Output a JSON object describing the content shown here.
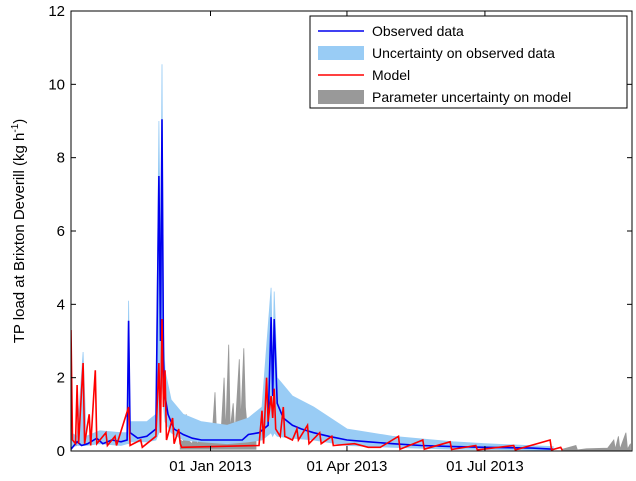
{
  "chart_data": {
    "type": "line",
    "title": "",
    "ylabel": {
      "prefix": "TP load at Brixton Deverill (kg h",
      "sup": "-1",
      "suffix": ")"
    },
    "xlabel": "",
    "ylim": [
      0,
      12
    ],
    "yticks": [
      0,
      2,
      4,
      6,
      8,
      10,
      12
    ],
    "xlim": [
      "2012-10-01",
      "2013-10-06"
    ],
    "xticks": [
      {
        "date": "2013-01-01",
        "label": "01 Jan 2013"
      },
      {
        "date": "2013-04-01",
        "label": "01 Apr 2013"
      },
      {
        "date": "2013-07-01",
        "label": "01 Jul 2013"
      }
    ],
    "grid": false,
    "legend_position": "top-right",
    "colors": {
      "observed": "#0000ee",
      "observed_band": "#99ccf5",
      "model": "#ff0000",
      "model_band": "#999999"
    },
    "legend": [
      {
        "label": "Observed data",
        "kind": "line",
        "color": "#0000ee"
      },
      {
        "label": "Uncertainty on observed data",
        "kind": "patch",
        "color": "#99ccf5"
      },
      {
        "label": "Model",
        "kind": "line",
        "color": "#ff0000"
      },
      {
        "label": "Parameter uncertainty on model",
        "kind": "patch",
        "color": "#999999"
      }
    ],
    "series": [
      {
        "name": "Observed data",
        "points": [
          [
            "2012-10-01",
            0.05
          ],
          [
            "2012-10-05",
            0.25
          ],
          [
            "2012-10-08",
            0.15
          ],
          [
            "2012-10-12",
            0.2
          ],
          [
            "2012-10-18",
            0.35
          ],
          [
            "2012-10-22",
            0.2
          ],
          [
            "2012-10-28",
            0.3
          ],
          [
            "2012-11-03",
            0.25
          ],
          [
            "2012-11-07",
            0.3
          ],
          [
            "2012-11-08",
            3.55
          ],
          [
            "2012-11-09",
            0.5
          ],
          [
            "2012-11-14",
            0.35
          ],
          [
            "2012-11-20",
            0.4
          ],
          [
            "2012-11-26",
            0.6
          ],
          [
            "2012-11-28",
            7.5
          ],
          [
            "2012-11-29",
            3.0
          ],
          [
            "2012-11-30",
            9.05
          ],
          [
            "2012-12-01",
            2.5
          ],
          [
            "2012-12-02",
            1.5
          ],
          [
            "2012-12-04",
            1.0
          ],
          [
            "2012-12-08",
            0.6
          ],
          [
            "2012-12-14",
            0.45
          ],
          [
            "2012-12-20",
            0.35
          ],
          [
            "2012-12-26",
            0.3
          ],
          [
            "2013-01-02",
            0.3
          ],
          [
            "2013-01-12",
            0.3
          ],
          [
            "2013-01-22",
            0.3
          ],
          [
            "2013-01-26",
            0.45
          ],
          [
            "2013-02-02",
            0.5
          ],
          [
            "2013-02-08",
            0.7
          ],
          [
            "2013-02-10",
            3.65
          ],
          [
            "2013-02-11",
            1.5
          ],
          [
            "2013-02-12",
            3.6
          ],
          [
            "2013-02-14",
            1.3
          ],
          [
            "2013-02-18",
            0.9
          ],
          [
            "2013-02-24",
            0.7
          ],
          [
            "2013-03-02",
            0.6
          ],
          [
            "2013-03-10",
            0.5
          ],
          [
            "2013-03-20",
            0.4
          ],
          [
            "2013-04-01",
            0.3
          ],
          [
            "2013-04-15",
            0.25
          ],
          [
            "2013-05-01",
            0.2
          ],
          [
            "2013-05-20",
            0.15
          ],
          [
            "2013-06-10",
            0.12
          ],
          [
            "2013-07-01",
            0.1
          ],
          [
            "2013-08-01",
            0.08
          ],
          [
            "2013-08-15",
            0.05
          ]
        ]
      },
      {
        "name": "Uncertainty on observed data",
        "points": [
          [
            "2012-10-01",
            0.1,
            0.5
          ],
          [
            "2012-10-05",
            0.15,
            0.4
          ],
          [
            "2012-10-09",
            0.15,
            2.7
          ],
          [
            "2012-10-11",
            0.15,
            0.4
          ],
          [
            "2012-10-20",
            0.2,
            0.55
          ],
          [
            "2012-11-03",
            0.15,
            0.5
          ],
          [
            "2012-11-07",
            0.2,
            0.5
          ],
          [
            "2012-11-08",
            0.2,
            4.1
          ],
          [
            "2012-11-09",
            0.25,
            0.8
          ],
          [
            "2012-11-20",
            0.25,
            0.8
          ],
          [
            "2012-11-26",
            0.3,
            1.0
          ],
          [
            "2012-11-28",
            0.5,
            9.0
          ],
          [
            "2012-11-29",
            1.0,
            5.0
          ],
          [
            "2012-11-30",
            2.0,
            10.55
          ],
          [
            "2012-12-01",
            1.2,
            3.3
          ],
          [
            "2012-12-02",
            0.8,
            2.2
          ],
          [
            "2012-12-06",
            0.5,
            1.4
          ],
          [
            "2012-12-14",
            0.3,
            1.0
          ],
          [
            "2012-12-26",
            0.25,
            0.8
          ],
          [
            "2013-01-12",
            0.2,
            0.7
          ],
          [
            "2013-01-26",
            0.25,
            0.9
          ],
          [
            "2013-02-04",
            0.3,
            1.2
          ],
          [
            "2013-02-10",
            0.5,
            4.45
          ],
          [
            "2013-02-11",
            0.4,
            2.2
          ],
          [
            "2013-02-12",
            0.5,
            4.35
          ],
          [
            "2013-02-14",
            0.4,
            2.0
          ],
          [
            "2013-02-24",
            0.35,
            1.5
          ],
          [
            "2013-03-10",
            0.3,
            1.2
          ],
          [
            "2013-04-01",
            0.15,
            0.6
          ],
          [
            "2013-05-01",
            0.1,
            0.4
          ],
          [
            "2013-06-10",
            0.05,
            0.25
          ],
          [
            "2013-07-01",
            0.04,
            0.2
          ],
          [
            "2013-08-15",
            0.02,
            0.12
          ]
        ]
      },
      {
        "name": "Model",
        "points": [
          [
            "2012-10-01",
            3.3
          ],
          [
            "2012-10-02",
            0.3
          ],
          [
            "2012-10-04",
            0.2
          ],
          [
            "2012-10-05",
            1.8
          ],
          [
            "2012-10-06",
            0.2
          ],
          [
            "2012-10-09",
            2.4
          ],
          [
            "2012-10-10",
            0.2
          ],
          [
            "2012-10-13",
            1.0
          ],
          [
            "2012-10-14",
            0.15
          ],
          [
            "2012-10-16",
            1.5
          ],
          [
            "2012-10-17",
            2.2
          ],
          [
            "2012-10-18",
            0.2
          ],
          [
            "2012-10-24",
            0.5
          ],
          [
            "2012-10-25",
            0.15
          ],
          [
            "2012-10-30",
            0.4
          ],
          [
            "2012-10-31",
            0.15
          ],
          [
            "2012-11-08",
            1.2
          ],
          [
            "2012-11-09",
            0.15
          ],
          [
            "2012-11-16",
            0.3
          ],
          [
            "2012-11-17",
            0.1
          ],
          [
            "2012-11-26",
            0.4
          ],
          [
            "2012-11-28",
            2.4
          ],
          [
            "2012-11-29",
            0.5
          ],
          [
            "2012-11-30",
            3.6
          ],
          [
            "2012-12-01",
            1.2
          ],
          [
            "2012-12-02",
            2.2
          ],
          [
            "2012-12-03",
            0.3
          ],
          [
            "2012-12-07",
            0.9
          ],
          [
            "2012-12-08",
            0.2
          ],
          [
            "2012-12-11",
            0.6
          ],
          [
            "2012-12-12",
            0.2
          ],
          [
            "2012-12-13",
            0.1
          ],
          [
            "2013-02-02",
            0.15
          ],
          [
            "2013-02-04",
            1.1
          ],
          [
            "2013-02-05",
            0.2
          ],
          [
            "2013-02-07",
            2.0
          ],
          [
            "2013-02-08",
            0.8
          ],
          [
            "2013-02-10",
            1.5
          ],
          [
            "2013-02-11",
            0.9
          ],
          [
            "2013-02-12",
            1.7
          ],
          [
            "2013-02-13",
            0.6
          ],
          [
            "2013-02-16",
            0.4
          ],
          [
            "2013-02-18",
            1.2
          ],
          [
            "2013-02-19",
            0.4
          ],
          [
            "2013-02-24",
            0.3
          ],
          [
            "2013-02-27",
            0.6
          ],
          [
            "2013-02-28",
            0.3
          ],
          [
            "2013-03-06",
            0.7
          ],
          [
            "2013-03-07",
            0.2
          ],
          [
            "2013-03-14",
            0.5
          ],
          [
            "2013-03-15",
            0.2
          ],
          [
            "2013-03-22",
            0.4
          ],
          [
            "2013-03-23",
            0.15
          ],
          [
            "2013-04-06",
            0.2
          ],
          [
            "2013-04-15",
            0.1
          ],
          [
            "2013-04-23",
            0.1
          ],
          [
            "2013-05-05",
            0.4
          ],
          [
            "2013-05-06",
            0.05
          ],
          [
            "2013-05-21",
            0.3
          ],
          [
            "2013-05-22",
            0.05
          ],
          [
            "2013-06-08",
            0.25
          ],
          [
            "2013-06-09",
            0.04
          ],
          [
            "2013-06-25",
            0.15
          ],
          [
            "2013-06-26",
            0.03
          ],
          [
            "2013-07-20",
            0.15
          ],
          [
            "2013-07-21",
            0.03
          ],
          [
            "2013-08-13",
            0.3
          ],
          [
            "2013-08-14",
            0.03
          ],
          [
            "2013-08-20",
            0.1
          ],
          [
            "2013-08-21",
            0.02
          ]
        ]
      },
      {
        "name": "Parameter uncertainty on model",
        "points": [
          [
            "2012-12-12",
            0.05,
            0.3
          ],
          [
            "2012-12-14",
            0.05,
            0.25
          ],
          [
            "2012-12-16",
            0.05,
            1.0
          ],
          [
            "2012-12-17",
            0.05,
            0.3
          ],
          [
            "2012-12-20",
            0.05,
            0.2
          ],
          [
            "2012-12-22",
            0.05,
            0.8
          ],
          [
            "2012-12-23",
            0.05,
            0.2
          ],
          [
            "2012-12-27",
            0.05,
            0.4
          ],
          [
            "2012-12-29",
            0.05,
            0.6
          ],
          [
            "2013-01-02",
            0.05,
            0.35
          ],
          [
            "2013-01-04",
            0.05,
            1.6
          ],
          [
            "2013-01-05",
            0.05,
            0.4
          ],
          [
            "2013-01-08",
            0.05,
            0.5
          ],
          [
            "2013-01-10",
            0.05,
            2.0
          ],
          [
            "2013-01-11",
            0.05,
            0.5
          ],
          [
            "2013-01-13",
            0.05,
            2.9
          ],
          [
            "2013-01-14",
            0.05,
            0.6
          ],
          [
            "2013-01-16",
            0.05,
            1.3
          ],
          [
            "2013-01-17",
            0.05,
            0.4
          ],
          [
            "2013-01-20",
            0.05,
            2.5
          ],
          [
            "2013-01-21",
            0.05,
            0.8
          ],
          [
            "2013-01-23",
            0.05,
            2.8
          ],
          [
            "2013-01-24",
            0.05,
            1.2
          ],
          [
            "2013-01-26",
            0.05,
            0.3
          ],
          [
            "2013-01-29",
            0.05,
            0.3
          ],
          [
            "2013-01-31",
            0.05,
            0.3
          ],
          [
            "2013-08-21",
            0.01,
            0.05
          ],
          [
            "2013-08-30",
            0.01,
            0.15
          ],
          [
            "2013-08-31",
            0.01,
            0.03
          ],
          [
            "2013-09-06",
            0.01,
            0.06
          ],
          [
            "2013-09-20",
            0.01,
            0.08
          ],
          [
            "2013-09-24",
            0.01,
            0.3
          ],
          [
            "2013-09-25",
            0.01,
            0.05
          ],
          [
            "2013-09-27",
            0.01,
            0.4
          ],
          [
            "2013-09-28",
            0.01,
            0.05
          ],
          [
            "2013-10-02",
            0.01,
            0.5
          ],
          [
            "2013-10-03",
            0.01,
            0.05
          ],
          [
            "2013-10-05",
            0.01,
            0.2
          ]
        ]
      }
    ]
  }
}
